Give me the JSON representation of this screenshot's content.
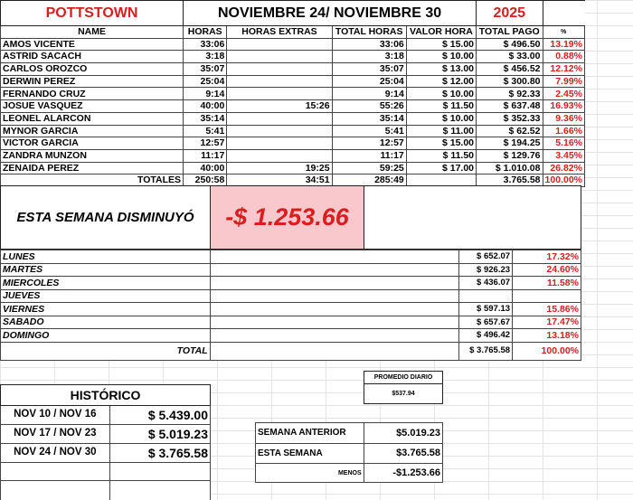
{
  "header": {
    "location": "POTTSTOWN",
    "period": "NOVIEMBRE 24/ NOVIEMBRE 30",
    "year": "2025"
  },
  "columns": [
    "NAME",
    "HORAS",
    "HORAS EXTRAS",
    "TOTAL HORAS",
    "VALOR HORA",
    "TOTAL PAGO",
    "%"
  ],
  "rows": [
    [
      "AMOS VICENTE",
      "33:06",
      "",
      "33:06",
      "$ 15.00",
      "$ 496.50",
      "13.19%"
    ],
    [
      "ASTRID SACACH",
      "3:18",
      "",
      "3:18",
      "$ 10.00",
      "$ 33.00",
      "0.88%"
    ],
    [
      "CARLOS OROZCO",
      "35:07",
      "",
      "35:07",
      "$ 13.00",
      "$ 456.52",
      "12.12%"
    ],
    [
      "DERWIN PEREZ",
      "25:04",
      "",
      "25:04",
      "$ 12.00",
      "$ 300.80",
      "7.99%"
    ],
    [
      "FERNANDO CRUZ",
      "9:14",
      "",
      "9:14",
      "$ 10.00",
      "$ 92.33",
      "2.45%"
    ],
    [
      "JOSUE VASQUEZ",
      "40:00",
      "15:26",
      "55:26",
      "$ 11.50",
      "$ 637.48",
      "16.93%"
    ],
    [
      "LEONEL ALARCON",
      "35:14",
      "",
      "35:14",
      "$ 10.00",
      "$ 352.33",
      "9.36%"
    ],
    [
      "MYNOR GARCIA",
      "5:41",
      "",
      "5:41",
      "$ 11.00",
      "$ 62.52",
      "1.66%"
    ],
    [
      "VICTOR GARCIA",
      "12:57",
      "",
      "12:57",
      "$ 15.00",
      "$ 194.25",
      "5.16%"
    ],
    [
      "ZANDRA MUNZON",
      "11:17",
      "",
      "11:17",
      "$ 11.50",
      "$ 129.76",
      "3.45%"
    ],
    [
      "ZENAIDA PEREZ",
      "40:00",
      "19:25",
      "59:25",
      "$ 17.00",
      "$ 1.010.08",
      "26.82%"
    ]
  ],
  "totals": {
    "label": "TOTALES",
    "horas": "250:58",
    "extras": "34:51",
    "total_horas": "285:49",
    "total_pago": "3.765.58",
    "pct": "100.00%"
  },
  "summary": {
    "label": "ESTA SEMANA DISMINUYÓ",
    "value": "-$ 1.253.66"
  },
  "days": [
    [
      "LUNES",
      "$ 652.07",
      "17.32%"
    ],
    [
      "MARTES",
      "$ 926.23",
      "24.60%"
    ],
    [
      "MIERCOLES",
      "$ 436.07",
      "11.58%"
    ],
    [
      "JUEVES",
      "",
      ""
    ],
    [
      "VIERNES",
      "$ 597.13",
      "15.86%"
    ],
    [
      "SABADO",
      "$ 657.67",
      "17.47%"
    ],
    [
      "DOMINGO",
      "$ 496.42",
      "13.18%"
    ]
  ],
  "days_total": {
    "label": "TOTAL",
    "value": "$ 3.765.58",
    "pct": "100.00%"
  },
  "promedio": {
    "label": "PROMEDIO DIARIO",
    "value": "$537.94"
  },
  "historico": {
    "title": "HISTÓRICO",
    "rows": [
      [
        "NOV 10 / NOV 16",
        "$ 5.439.00"
      ],
      [
        "NOV 17 / NOV 23",
        "$ 5.019.23"
      ],
      [
        "NOV 24 / NOV 30",
        "$ 3.765.58"
      ]
    ]
  },
  "comparison": {
    "prev_label": "SEMANA ANTERIOR",
    "prev": "$5.019.23",
    "curr_label": "ESTA SEMANA",
    "curr": "$3.765.58",
    "diff_label": "MENOS",
    "diff": "-$1.253.66"
  },
  "colors": {
    "accent_red": "#d81e1e",
    "highlight_pink": "#f8c8cc"
  }
}
